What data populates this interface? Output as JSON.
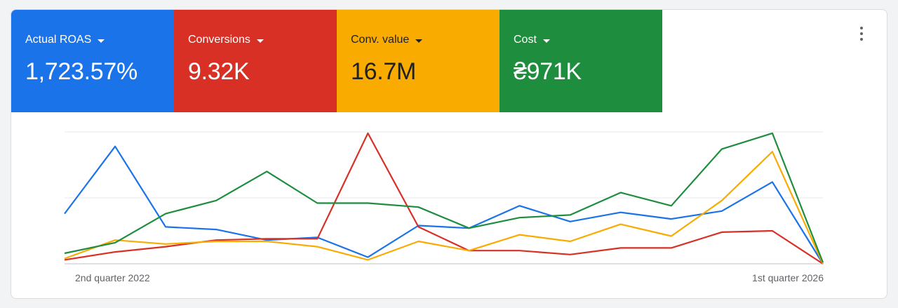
{
  "metrics": [
    {
      "label": "Actual ROAS",
      "value": "1,723.57%",
      "color": "#1a73e8",
      "text_color": "#ffffff"
    },
    {
      "label": "Conversions",
      "value": "9.32K",
      "color": "#d93025",
      "text_color": "#ffffff"
    },
    {
      "label": "Conv. value",
      "value": "16.7M",
      "color": "#f9ab00",
      "text_color": "#202124"
    },
    {
      "label": "Cost",
      "value": "₴971K",
      "color": "#1e8e3e",
      "text_color": "#ffffff"
    }
  ],
  "menu_icon": "more-vert-icon",
  "chart_data": {
    "type": "line",
    "x_tick_labels": [
      "2nd quarter 2022",
      "1st quarter 2026"
    ],
    "y_normalized_range": [
      0,
      1
    ],
    "grid": true,
    "series": [
      {
        "name": "Actual ROAS",
        "color": "#1a73e8",
        "values": [
          0.38,
          0.89,
          0.28,
          0.26,
          0.18,
          0.2,
          0.05,
          0.29,
          0.27,
          0.44,
          0.32,
          0.39,
          0.34,
          0.4,
          0.62,
          0.0
        ]
      },
      {
        "name": "Conversions",
        "color": "#d93025",
        "values": [
          0.03,
          0.09,
          0.13,
          0.18,
          0.19,
          0.19,
          0.99,
          0.28,
          0.1,
          0.1,
          0.07,
          0.12,
          0.12,
          0.24,
          0.25,
          0.0
        ]
      },
      {
        "name": "Conv. value",
        "color": "#f9ab00",
        "values": [
          0.04,
          0.18,
          0.15,
          0.17,
          0.17,
          0.13,
          0.03,
          0.17,
          0.1,
          0.22,
          0.17,
          0.3,
          0.21,
          0.48,
          0.85,
          0.0
        ]
      },
      {
        "name": "Cost",
        "color": "#1e8e3e",
        "values": [
          0.08,
          0.16,
          0.38,
          0.48,
          0.7,
          0.46,
          0.46,
          0.43,
          0.27,
          0.35,
          0.37,
          0.54,
          0.44,
          0.87,
          0.99,
          0.01
        ]
      }
    ]
  }
}
